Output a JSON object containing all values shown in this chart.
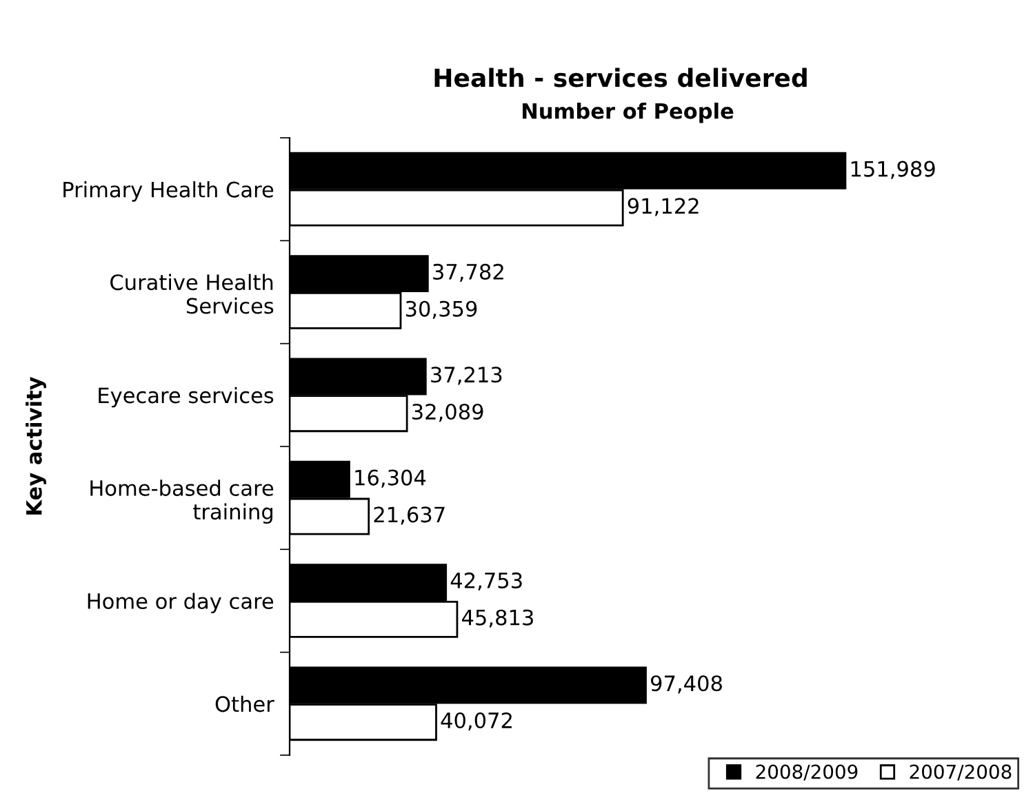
{
  "chart_data": {
    "type": "bar",
    "orientation": "horizontal",
    "title": "Health - services delivered",
    "xlabel": "Number of People",
    "ylabel": "Key activity",
    "categories": [
      "Primary Health Care",
      "Curative Health\nServices",
      "Eyecare services",
      "Home-based care\ntraining",
      "Home or day care",
      "Other"
    ],
    "series": [
      {
        "name": "2008/2009",
        "color": "#000000",
        "values": [
          151989,
          37782,
          37213,
          16304,
          42753,
          97408
        ],
        "value_labels": [
          "151,989",
          "37,782",
          "37,213",
          "16,304",
          "42,753",
          "97,408"
        ]
      },
      {
        "name": "2007/2008",
        "color": "#ffffff",
        "values": [
          91122,
          30359,
          32089,
          21637,
          45813,
          40072
        ],
        "value_labels": [
          "91,122",
          "30,359",
          "32,089",
          "21,637",
          "45,813",
          "40,072"
        ]
      }
    ],
    "legend": "bottom right",
    "grid": false
  }
}
